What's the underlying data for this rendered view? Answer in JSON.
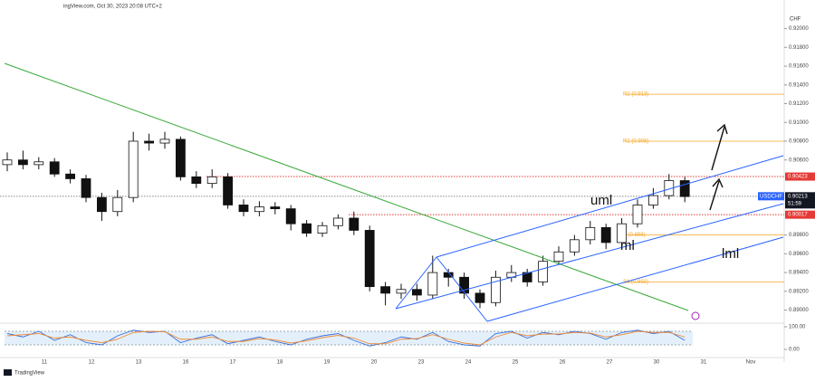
{
  "header": "ingView.com, Oct 30, 2023 20:08 UTC+2",
  "footer": "TradingView",
  "chart_data": {
    "type": "candlestick",
    "currency": "CHF",
    "categories": [
      "11",
      "12",
      "13",
      "16",
      "17",
      "18",
      "19",
      "20",
      "23",
      "24",
      "25",
      "26",
      "27",
      "30",
      "31",
      "Nov"
    ],
    "open": [
      0.9055,
      0.906,
      0.9055,
      0.9058,
      0.9045,
      0.904,
      0.902,
      0.9005,
      0.902,
      0.908,
      0.9078,
      0.9082,
      0.9042,
      0.9035,
      0.9042,
      0.9012,
      0.9005,
      0.901,
      0.9008,
      0.8992,
      0.8982,
      0.899,
      0.8998,
      0.8985,
      0.8925,
      0.8918,
      0.8922,
      0.8916,
      0.894,
      0.8935,
      0.8918,
      0.8908,
      0.8935,
      0.894,
      0.893,
      0.8952,
      0.8962,
      0.8975,
      0.8988,
      0.8972,
      0.8992,
      0.9012,
      0.9022,
      0.9038
    ],
    "high": [
      0.9068,
      0.907,
      0.9063,
      0.9062,
      0.905,
      0.9044,
      0.9025,
      0.9028,
      0.909,
      0.9088,
      0.909,
      0.9085,
      0.9048,
      0.905,
      0.9046,
      0.9018,
      0.9016,
      0.9015,
      0.9012,
      0.8996,
      0.8994,
      0.9002,
      0.9005,
      0.899,
      0.893,
      0.8928,
      0.8928,
      0.8958,
      0.8944,
      0.894,
      0.8922,
      0.8942,
      0.8948,
      0.8944,
      0.8958,
      0.8968,
      0.898,
      0.8995,
      0.8992,
      0.8998,
      0.9018,
      0.903,
      0.9045,
      0.9042
    ],
    "low": [
      0.9048,
      0.905,
      0.905,
      0.9042,
      0.9035,
      0.9015,
      0.8995,
      0.9,
      0.9015,
      0.907,
      0.9072,
      0.9038,
      0.903,
      0.903,
      0.9008,
      0.9,
      0.9,
      0.9002,
      0.8985,
      0.8978,
      0.8978,
      0.8986,
      0.898,
      0.892,
      0.8905,
      0.8912,
      0.891,
      0.8912,
      0.8925,
      0.8912,
      0.8902,
      0.8904,
      0.893,
      0.8925,
      0.8926,
      0.8948,
      0.8958,
      0.897,
      0.8965,
      0.8968,
      0.8988,
      0.9008,
      0.9018,
      0.9015
    ],
    "close": [
      0.906,
      0.9055,
      0.9058,
      0.9045,
      0.904,
      0.902,
      0.9005,
      0.902,
      0.908,
      0.9078,
      0.9082,
      0.9042,
      0.9035,
      0.9042,
      0.9012,
      0.9005,
      0.901,
      0.9008,
      0.8992,
      0.8982,
      0.899,
      0.8998,
      0.8985,
      0.8925,
      0.8918,
      0.8922,
      0.8916,
      0.894,
      0.8935,
      0.8918,
      0.8908,
      0.8935,
      0.894,
      0.893,
      0.8952,
      0.8962,
      0.8975,
      0.8988,
      0.8972,
      0.8992,
      0.9012,
      0.9022,
      0.9038,
      0.9021
    ],
    "color_up": "#ffffff",
    "color_down": "#111111",
    "ylim": [
      0.8888,
      0.9216
    ],
    "yticks": [
      {
        "value": 0.92,
        "label": "0.92000"
      },
      {
        "value": 0.918,
        "label": "0.91800"
      },
      {
        "value": 0.916,
        "label": "0.91600"
      },
      {
        "value": 0.914,
        "label": "0.91400"
      },
      {
        "value": 0.912,
        "label": "0.91200"
      },
      {
        "value": 0.91,
        "label": "0.91000"
      },
      {
        "value": 0.908,
        "label": "0.90800"
      },
      {
        "value": 0.906,
        "label": "0.90600"
      },
      {
        "value": 0.898,
        "label": "0.89800"
      },
      {
        "value": 0.896,
        "label": "0.89600"
      },
      {
        "value": 0.894,
        "label": "0.89400"
      },
      {
        "value": 0.892,
        "label": "0.89200"
      },
      {
        "value": 0.89,
        "label": "0.89000"
      }
    ],
    "last_price": {
      "value": 0.90213,
      "label": "0.90213",
      "symbol": "USDCHF",
      "countdown": "51:59"
    },
    "levels": [
      {
        "value": 0.90423,
        "label": "0.90423",
        "color": "#e53935"
      },
      {
        "value": 0.90017,
        "label": "0.90017",
        "color": "#e53935"
      }
    ],
    "pivots": [
      {
        "value": 0.913,
        "label": "R2 (0.913)"
      },
      {
        "value": 0.908,
        "label": "R1 (0.908)"
      },
      {
        "value": 0.898,
        "label": "P (0.898)"
      },
      {
        "value": 0.893,
        "label": "S1 (0.893)"
      }
    ],
    "pivot_color": "#f5a623",
    "annotations": [
      "uml",
      "ml",
      "lml"
    ],
    "oscillator": {
      "ylim": [
        0,
        100
      ],
      "yticks": [
        {
          "value": 100,
          "label": "100.00"
        },
        {
          "value": 0,
          "label": "0.00"
        }
      ],
      "series": [
        {
          "color": "#3b6fd8",
          "values": [
            70,
            55,
            80,
            40,
            65,
            30,
            20,
            60,
            85,
            75,
            80,
            30,
            50,
            65,
            25,
            40,
            55,
            35,
            20,
            45,
            60,
            70,
            40,
            15,
            30,
            55,
            45,
            75,
            35,
            20,
            15,
            70,
            80,
            50,
            75,
            65,
            80,
            70,
            45,
            75,
            85,
            70,
            80,
            40
          ]
        },
        {
          "color": "#f08c3a",
          "values": [
            60,
            65,
            70,
            50,
            55,
            40,
            30,
            45,
            75,
            80,
            78,
            45,
            45,
            55,
            35,
            35,
            48,
            42,
            28,
            38,
            52,
            62,
            50,
            25,
            25,
            45,
            48,
            65,
            45,
            28,
            20,
            55,
            75,
            60,
            68,
            68,
            75,
            72,
            55,
            65,
            80,
            75,
            75,
            55
          ]
        }
      ]
    }
  }
}
